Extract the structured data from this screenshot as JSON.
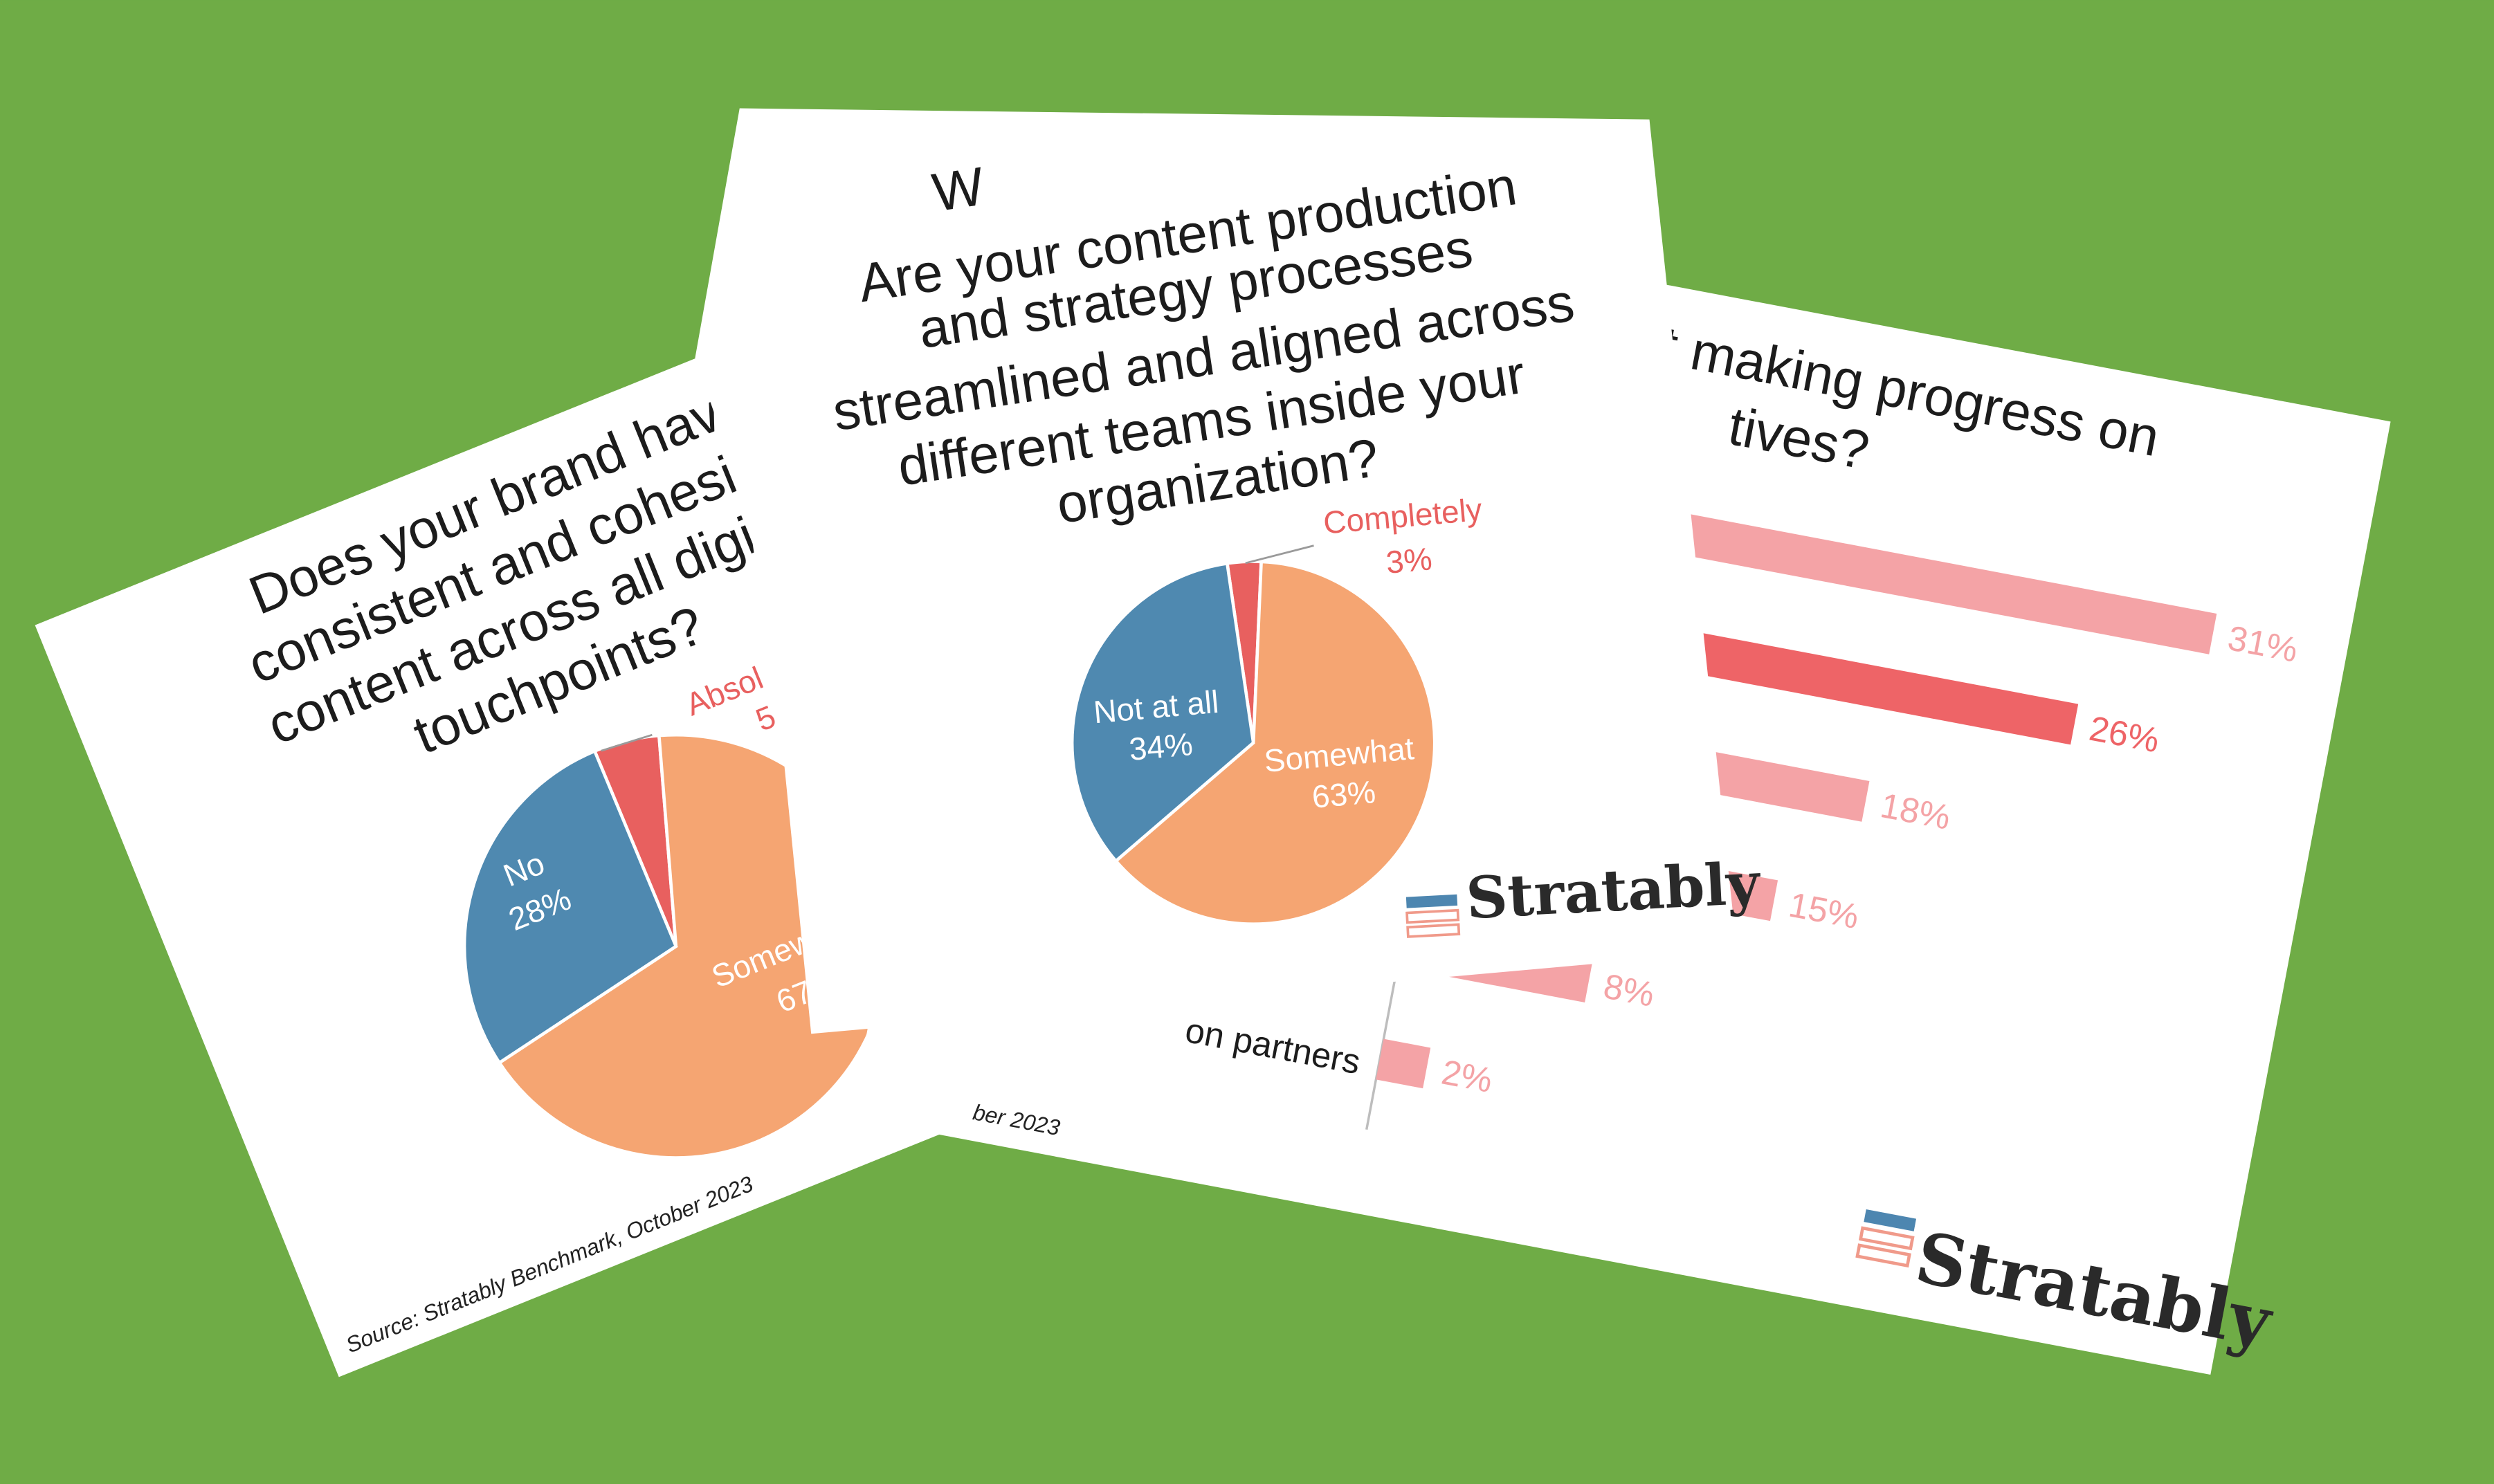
{
  "chart_data": [
    {
      "type": "pie",
      "title_lines": [
        "Does your brand have",
        "consistent and cohesi",
        "content across all digi",
        "touchpoints?"
      ],
      "categories": [
        "Absol",
        "Somew",
        "No"
      ],
      "values": [
        5,
        67,
        28
      ],
      "value_labels": [
        "5",
        "67",
        "28%"
      ],
      "colors": [
        "#e8605f",
        "#f5a572",
        "#4f89b0"
      ],
      "source": "Source: Stratably Benchmark, October 2023"
    },
    {
      "type": "pie",
      "title_fragment": "W",
      "title_lines": [
        "Are your content production",
        "and strategy processes",
        "streamlined and aligned across",
        "different teams inside your",
        "organization?"
      ],
      "categories": [
        "Completely",
        "Somewhat",
        "Not at all"
      ],
      "values": [
        3,
        63,
        34
      ],
      "value_labels": [
        "3%",
        "63%",
        "34%"
      ],
      "colors": [
        "#e8605f",
        "#f5a572",
        "#4f89b0"
      ],
      "logo": "Stratably"
    },
    {
      "type": "bar",
      "orientation": "horizontal",
      "title_lines": [
        "t making progress on",
        "tives?"
      ],
      "categories": [
        null,
        null,
        null,
        null,
        null,
        "on partners"
      ],
      "values": [
        31,
        26,
        18,
        15,
        8,
        2
      ],
      "value_labels": [
        "31%",
        "26%",
        "18%",
        "15%",
        "8%",
        "2%"
      ],
      "colors": [
        "#f4a3a6",
        "#ee6467",
        "#f4a3a6",
        "#f4a3a6",
        "#f4a3a6",
        "#f4a3a6"
      ],
      "source": "ber 2023",
      "logo": "Stratably"
    }
  ]
}
